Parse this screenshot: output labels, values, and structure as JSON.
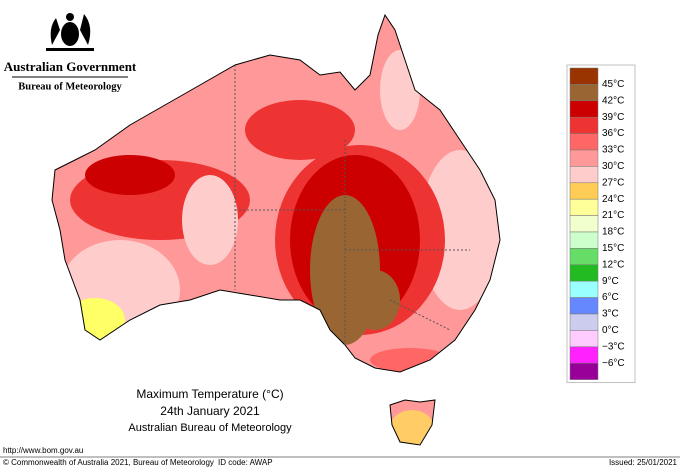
{
  "header": {
    "government": "Australian Government",
    "agency": "Bureau of Meteorology"
  },
  "legend": {
    "colors": [
      "#993300",
      "#996633",
      "#cc0000",
      "#ee3333",
      "#ff6666",
      "#ff9999",
      "#ffcccc",
      "#ffcc55",
      "#ffff99",
      "#f0ffcc",
      "#ccffcc",
      "#66dd66",
      "#22bb22",
      "#99ffff",
      "#6688ff",
      "#ccccee",
      "#ffccff",
      "#ff22ff",
      "#990099"
    ],
    "labels": [
      "45°C",
      "42°C",
      "39°C",
      "36°C",
      "33°C",
      "30°C",
      "27°C",
      "24°C",
      "21°C",
      "18°C",
      "15°C",
      "12°C",
      "9°C",
      "6°C",
      "3°C",
      "0°C",
      "−3°C",
      "−6°C"
    ]
  },
  "caption": {
    "title": "Maximum Temperature (°C)",
    "date": "24th January 2021",
    "source": "Australian Bureau of Meteorology"
  },
  "footer": {
    "url": "http://www.bom.gov.au",
    "copyright": "© Commonwealth of Australia 2021, Bureau of Meteorology",
    "id_code": "ID code: AWAP",
    "issued": "Issued: 25/01/2021"
  }
}
